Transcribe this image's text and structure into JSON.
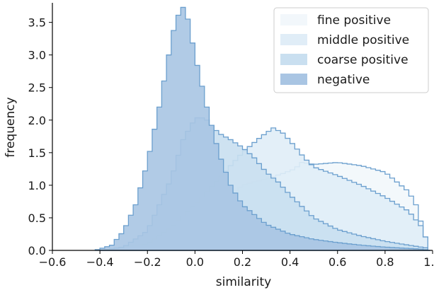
{
  "chart_data": {
    "type": "area",
    "title": "",
    "xlabel": "similarity",
    "ylabel": "frequency",
    "xlim": [
      -0.6,
      1.0
    ],
    "ylim": [
      0.0,
      3.8
    ],
    "x_ticks": [
      -0.6,
      -0.4,
      -0.2,
      0.0,
      0.2,
      0.4,
      0.6,
      0.8,
      1.0
    ],
    "x_tick_labels": [
      "−0.6",
      "−0.4",
      "−0.2",
      "0.0",
      "0.2",
      "0.4",
      "0.6",
      "0.8",
      "1.0"
    ],
    "y_ticks": [
      0.0,
      0.5,
      1.0,
      1.5,
      2.0,
      2.5,
      3.0,
      3.5
    ],
    "y_tick_labels": [
      "0.0",
      "0.5",
      "1.0",
      "1.5",
      "2.0",
      "2.5",
      "3.0",
      "3.5"
    ],
    "grid": false,
    "legend_position": "top-right",
    "histogram_style": "stepfilled",
    "series": [
      {
        "name": "fine positive",
        "fill": "#f2f7fb",
        "stroke": "#6b9fce",
        "points": [
          [
            -0.4,
            0.0
          ],
          [
            -0.2,
            0.04
          ],
          [
            0.0,
            0.3
          ],
          [
            0.1,
            0.7
          ],
          [
            0.2,
            1.0
          ],
          [
            0.3,
            1.1
          ],
          [
            0.37,
            1.18
          ],
          [
            0.42,
            1.25
          ],
          [
            0.45,
            1.35
          ],
          [
            0.5,
            1.32
          ],
          [
            0.6,
            1.35
          ],
          [
            0.7,
            1.3
          ],
          [
            0.8,
            1.2
          ],
          [
            0.85,
            1.05
          ],
          [
            0.9,
            0.9
          ],
          [
            0.93,
            0.7
          ],
          [
            0.95,
            0.45
          ],
          [
            0.97,
            0.2
          ],
          [
            0.99,
            0.0
          ]
        ]
      },
      {
        "name": "middle positive",
        "fill": "#e0edf7",
        "stroke": "#6b9fce",
        "points": [
          [
            -0.4,
            0.0
          ],
          [
            -0.2,
            0.1
          ],
          [
            -0.1,
            0.35
          ],
          [
            0.0,
            0.7
          ],
          [
            0.1,
            1.1
          ],
          [
            0.2,
            1.5
          ],
          [
            0.28,
            1.75
          ],
          [
            0.33,
            1.88
          ],
          [
            0.37,
            1.8
          ],
          [
            0.42,
            1.6
          ],
          [
            0.46,
            1.42
          ],
          [
            0.5,
            1.28
          ],
          [
            0.6,
            1.15
          ],
          [
            0.7,
            1.0
          ],
          [
            0.8,
            0.82
          ],
          [
            0.9,
            0.6
          ],
          [
            0.95,
            0.38
          ],
          [
            0.98,
            0.12
          ],
          [
            0.99,
            0.0
          ]
        ]
      },
      {
        "name": "coarse positive",
        "fill": "#c9dff0",
        "stroke": "#6b9fce",
        "points": [
          [
            -0.4,
            0.0
          ],
          [
            -0.3,
            0.05
          ],
          [
            -0.2,
            0.3
          ],
          [
            -0.1,
            1.1
          ],
          [
            -0.05,
            1.7
          ],
          [
            0.0,
            2.02
          ],
          [
            0.02,
            2.05
          ],
          [
            0.05,
            2.0
          ],
          [
            0.1,
            1.8
          ],
          [
            0.15,
            1.7
          ],
          [
            0.2,
            1.58
          ],
          [
            0.25,
            1.42
          ],
          [
            0.3,
            1.2
          ],
          [
            0.35,
            1.05
          ],
          [
            0.4,
            0.85
          ],
          [
            0.5,
            0.5
          ],
          [
            0.6,
            0.32
          ],
          [
            0.7,
            0.22
          ],
          [
            0.8,
            0.14
          ],
          [
            0.9,
            0.08
          ],
          [
            0.97,
            0.04
          ],
          [
            0.99,
            0.0
          ]
        ]
      },
      {
        "name": "negative",
        "fill": "#a9c5e3",
        "stroke": "#6b9fce",
        "points": [
          [
            -0.42,
            0.0
          ],
          [
            -0.35,
            0.08
          ],
          [
            -0.3,
            0.3
          ],
          [
            -0.25,
            0.7
          ],
          [
            -0.2,
            1.35
          ],
          [
            -0.15,
            2.2
          ],
          [
            -0.12,
            2.8
          ],
          [
            -0.1,
            3.2
          ],
          [
            -0.08,
            3.55
          ],
          [
            -0.05,
            3.73
          ],
          [
            -0.03,
            3.55
          ],
          [
            0.0,
            3.0
          ],
          [
            0.05,
            2.2
          ],
          [
            0.1,
            1.5
          ],
          [
            0.15,
            1.0
          ],
          [
            0.2,
            0.7
          ],
          [
            0.3,
            0.4
          ],
          [
            0.4,
            0.25
          ],
          [
            0.5,
            0.17
          ],
          [
            0.6,
            0.12
          ],
          [
            0.7,
            0.08
          ],
          [
            0.8,
            0.05
          ],
          [
            0.9,
            0.03
          ],
          [
            0.95,
            0.02
          ],
          [
            0.99,
            0.0
          ]
        ]
      }
    ]
  }
}
